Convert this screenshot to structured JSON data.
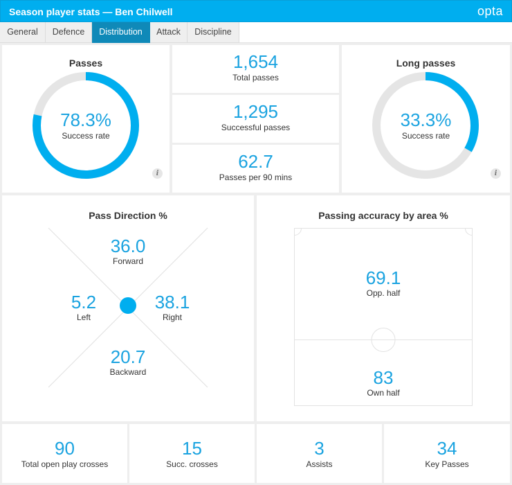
{
  "header": {
    "title": "Season player stats — Ben Chilwell",
    "logo": "opta"
  },
  "tabs": [
    {
      "label": "General"
    },
    {
      "label": "Defence"
    },
    {
      "label": "Distribution",
      "active": true
    },
    {
      "label": "Attack"
    },
    {
      "label": "Discipline"
    }
  ],
  "passes": {
    "title": "Passes",
    "value": "78.3%",
    "label": "Success rate",
    "fraction": 0.783
  },
  "long_passes": {
    "title": "Long passes",
    "value": "33.3%",
    "label": "Success rate",
    "fraction": 0.333
  },
  "totals": [
    {
      "value": "1,654",
      "label": "Total passes"
    },
    {
      "value": "1,295",
      "label": "Successful passes"
    },
    {
      "value": "62.7",
      "label": "Passes per 90 mins"
    }
  ],
  "pass_direction": {
    "title": "Pass Direction %",
    "forward": {
      "value": "36.0",
      "label": "Forward"
    },
    "left": {
      "value": "5.2",
      "label": "Left"
    },
    "right": {
      "value": "38.1",
      "label": "Right"
    },
    "backward": {
      "value": "20.7",
      "label": "Backward"
    }
  },
  "accuracy": {
    "title": "Passing accuracy by area %",
    "opp_half": {
      "value": "69.1",
      "label": "Opp. half"
    },
    "own_half": {
      "value": "83",
      "label": "Own half"
    }
  },
  "bottom_stats": [
    {
      "value": "90",
      "label": "Total open play crosses"
    },
    {
      "value": "15",
      "label": "Succ. crosses"
    },
    {
      "value": "3",
      "label": "Assists"
    },
    {
      "value": "34",
      "label": "Key Passes"
    }
  ],
  "info_glyph": "i",
  "colors": {
    "accent": "#00aeef",
    "value": "#1aa3e0",
    "track": "#e5e5e5",
    "tab_active": "#0f89b8"
  }
}
